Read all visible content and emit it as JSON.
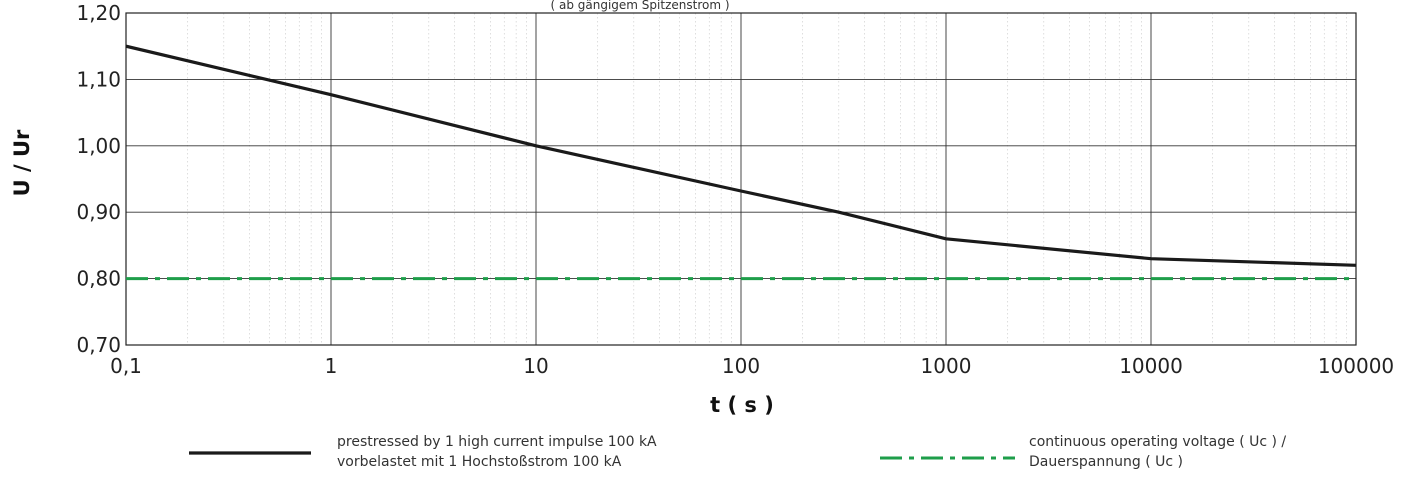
{
  "chart_data": {
    "type": "line",
    "top_note": "( ab gängigem Spitzenstrom )",
    "xlabel": "t ( s )",
    "ylabel": "U / Ur",
    "x_scale": "log",
    "xlim": [
      0.1,
      100000
    ],
    "ylim": [
      0.7,
      1.2
    ],
    "x_ticks": [
      0.1,
      1,
      10,
      100,
      1000,
      10000,
      100000
    ],
    "x_tick_labels": [
      "0,1",
      "1",
      "10",
      "100",
      "1000",
      "10000",
      "100000"
    ],
    "y_ticks": [
      0.7,
      0.8,
      0.9,
      1.0,
      1.1,
      1.2
    ],
    "y_tick_labels": [
      "0,70",
      "0,80",
      "0,90",
      "1,00",
      "1,10",
      "1,20"
    ],
    "grid": true,
    "series": [
      {
        "name_lines": [
          "prestressed by 1 high current impulse 100 kA",
          "vorbelastet mit 1 Hochstoßstrom 100 kA"
        ],
        "color": "#1a1a1a",
        "style": "solid",
        "x": [
          0.1,
          1,
          10,
          100,
          300,
          1000,
          10000,
          100000
        ],
        "y": [
          1.15,
          1.077,
          1.0,
          0.932,
          0.9,
          0.86,
          0.83,
          0.82
        ]
      },
      {
        "name_lines": [
          "continuous operating voltage ( Uc ) /",
          "Dauerspannung ( Uc )"
        ],
        "color": "#1e9e4a",
        "style": "dashdot",
        "x": [
          0.1,
          100000
        ],
        "y": [
          0.8,
          0.8
        ]
      }
    ],
    "legend_position": "bottom"
  }
}
